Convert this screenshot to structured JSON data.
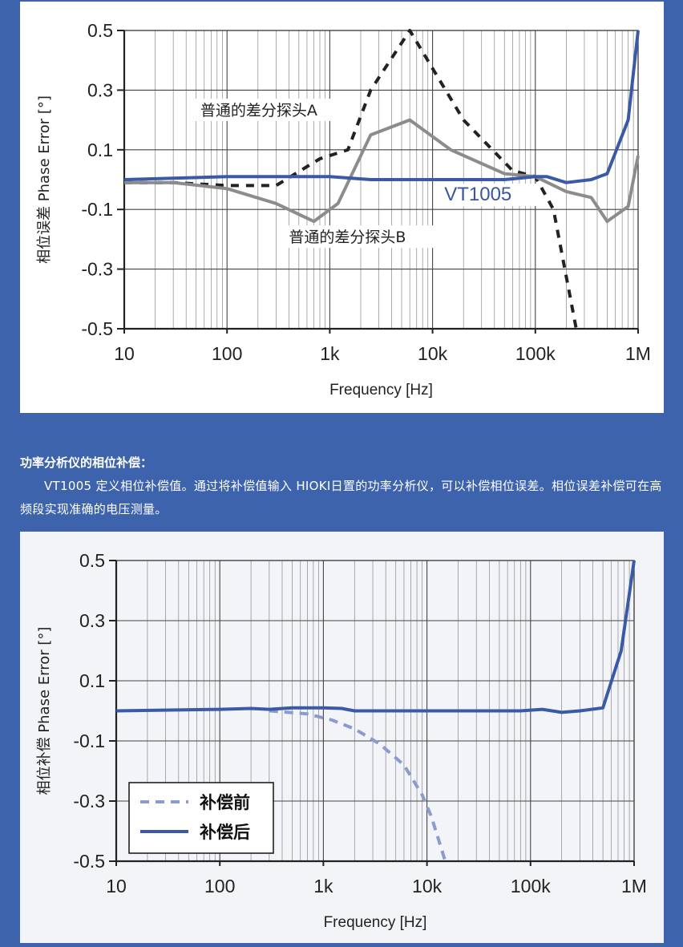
{
  "colors": {
    "blue": "#3a5aa6",
    "gray": "#8c8c8c",
    "black": "#222222",
    "dash_blue": "#8b9bcc"
  },
  "description": {
    "heading": "功率分析仪的相位补偿：",
    "body": "VT1005 定义相位补偿值。通过将补偿值输入 HIOKI日置的功率分析仪，可以补偿相位误差。相位误差补偿可在高频段实现准确的电压测量。"
  },
  "chart_data": [
    {
      "type": "line",
      "xscale": "log",
      "xlim": [
        10,
        1000000
      ],
      "ylim": [
        -0.5,
        0.5
      ],
      "xticks": [
        10,
        100,
        1000,
        10000,
        100000,
        1000000
      ],
      "xtick_labels": [
        "10",
        "100",
        "1k",
        "10k",
        "100k",
        "1M"
      ],
      "yticks": [
        0.5,
        0.3,
        0.1,
        -0.1,
        -0.3,
        -0.5
      ],
      "ytick_labels": [
        "0.5",
        "0.3",
        "0.1",
        "-0.1",
        "-0.3",
        "-0.5"
      ],
      "xlabel": "Frequency [Hz]",
      "ylabel": "相位误差 Phase Error [°]",
      "grid": true,
      "annotations": [
        {
          "text": "普通的差分探头A",
          "x": 55,
          "y": 0.215
        },
        {
          "text": "VT1005",
          "x": 13000,
          "y": -0.07
        },
        {
          "text": "普通的差分探头B",
          "x": 400,
          "y": -0.21
        }
      ],
      "series": [
        {
          "name": "普通的差分探头A",
          "style": "dashed",
          "color": "#222222",
          "x": [
            10,
            30,
            100,
            300,
            800,
            1500,
            2500,
            6000,
            20000,
            60000,
            100000,
            150000,
            250000
          ],
          "y": [
            -0.01,
            -0.01,
            -0.02,
            -0.02,
            0.07,
            0.1,
            0.3,
            0.5,
            0.2,
            0.03,
            0.01,
            -0.1,
            -0.5
          ]
        },
        {
          "name": "普通的差分探头B",
          "style": "solid",
          "color": "#8c8c8c",
          "x": [
            10,
            30,
            100,
            300,
            700,
            1200,
            2500,
            6000,
            15000,
            50000,
            100000,
            200000,
            350000,
            500000,
            800000,
            1000000
          ],
          "y": [
            -0.01,
            -0.01,
            -0.03,
            -0.08,
            -0.14,
            -0.08,
            0.15,
            0.2,
            0.1,
            0.02,
            0.01,
            -0.04,
            -0.06,
            -0.14,
            -0.09,
            0.08
          ]
        },
        {
          "name": "VT1005",
          "style": "solid",
          "color": "#3a5aa6",
          "x": [
            10,
            100,
            1000,
            2500,
            10000,
            50000,
            100000,
            130000,
            200000,
            350000,
            500000,
            800000,
            1000000
          ],
          "y": [
            0.0,
            0.01,
            0.01,
            0.0,
            0.0,
            0.0,
            0.01,
            0.01,
            -0.01,
            0.0,
            0.02,
            0.2,
            0.5
          ]
        }
      ]
    },
    {
      "type": "line",
      "xscale": "log",
      "xlim": [
        10,
        1000000
      ],
      "ylim": [
        -0.5,
        0.5
      ],
      "xticks": [
        10,
        100,
        1000,
        10000,
        100000,
        1000000
      ],
      "xtick_labels": [
        "10",
        "100",
        "1k",
        "10k",
        "100k",
        "1M"
      ],
      "yticks": [
        0.5,
        0.3,
        0.1,
        -0.1,
        -0.3,
        -0.5
      ],
      "ytick_labels": [
        "0.5",
        "0.3",
        "0.1",
        "-0.1",
        "-0.3",
        "-0.5"
      ],
      "xlabel": "Frequency [Hz]",
      "ylabel": "相位补偿 Phase Error [°]",
      "grid": true,
      "legend": "bottom-left",
      "series": [
        {
          "name": "补偿前",
          "style": "dashed",
          "color": "#8b9bcc",
          "x": [
            300,
            700,
            1200,
            2000,
            3500,
            6000,
            9000,
            11000,
            13000,
            15000
          ],
          "y": [
            0.0,
            -0.01,
            -0.03,
            -0.06,
            -0.11,
            -0.18,
            -0.28,
            -0.35,
            -0.43,
            -0.5
          ]
        },
        {
          "name": "补偿后",
          "style": "solid",
          "color": "#3a5aa6",
          "x": [
            10,
            100,
            200,
            300,
            500,
            1000,
            1500,
            2000,
            3000,
            10000,
            30000,
            80000,
            130000,
            200000,
            300000,
            500000,
            750000,
            1000000
          ],
          "y": [
            0.0,
            0.005,
            0.008,
            0.005,
            0.01,
            0.01,
            0.008,
            0.0,
            0.0,
            0.0,
            0.0,
            0.0,
            0.005,
            -0.005,
            0.0,
            0.01,
            0.2,
            0.5
          ]
        }
      ]
    }
  ]
}
